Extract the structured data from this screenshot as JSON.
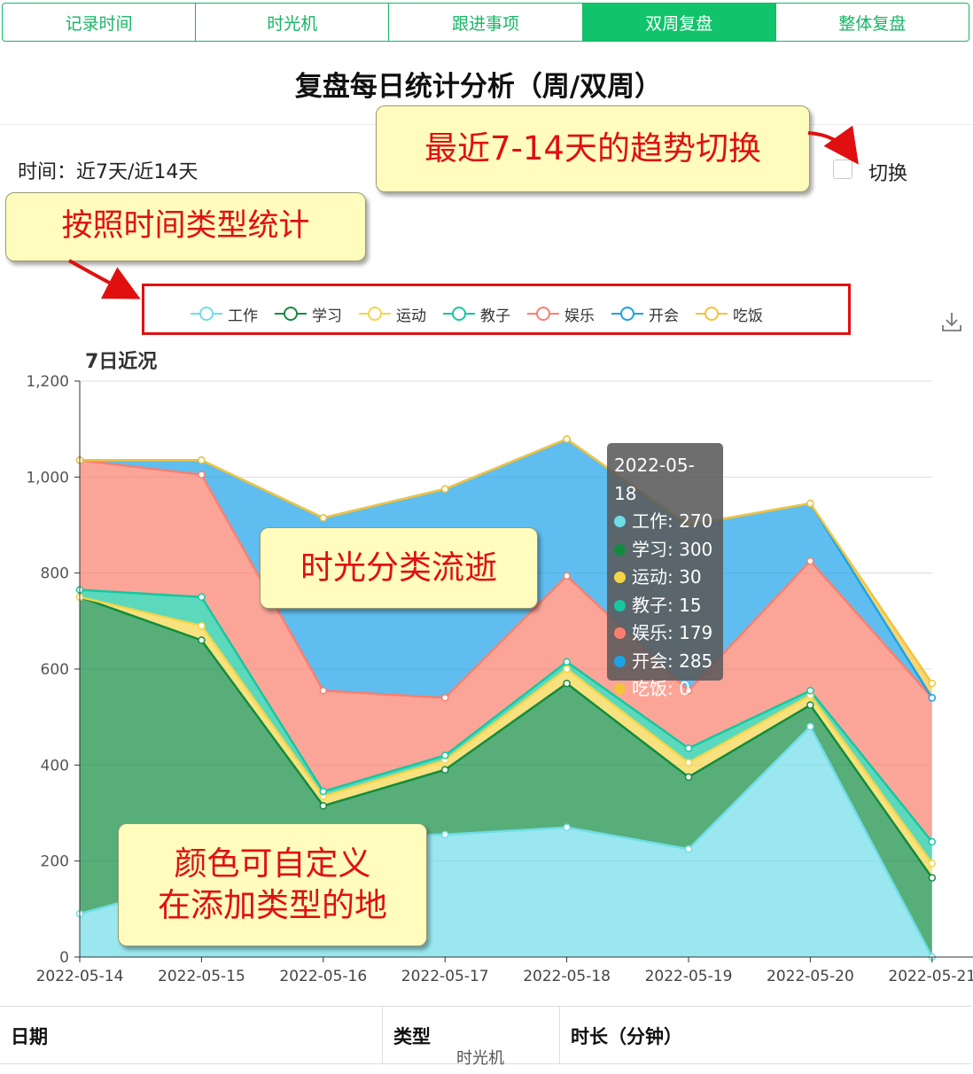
{
  "tabs": [
    {
      "label": "记录时间",
      "active": false
    },
    {
      "label": "时光机",
      "active": false
    },
    {
      "label": "跟进事项",
      "active": false
    },
    {
      "label": "双周复盘",
      "active": true
    },
    {
      "label": "整体复盘",
      "active": false
    }
  ],
  "page_title": "复盘每日统计分析（周/双周）",
  "time_label": "时间：近7天/近14天",
  "switch_label": "切换",
  "callouts": {
    "trend": "最近7-14天的趋势切换",
    "legend": "按照时间类型统计",
    "flow": "时光分类流逝",
    "color_line1": "颜色可自定义",
    "color_line2": "在添加类型的地"
  },
  "chart_data": {
    "type": "area",
    "stacked": true,
    "title": "7日近况",
    "categories": [
      "2022-05-14",
      "2022-05-15",
      "2022-05-16",
      "2022-05-17",
      "2022-05-18",
      "2022-05-19",
      "2022-05-20",
      "2022-05-21"
    ],
    "ylim": [
      0,
      1200
    ],
    "yticks": [
      "0",
      "200",
      "400",
      "600",
      "800",
      "1,000",
      "1,200"
    ],
    "grid": true,
    "legend_position": "top",
    "series": [
      {
        "name": "工作",
        "color": "#6fdde8",
        "values": [
          90,
          160,
          255,
          255,
          270,
          225,
          480,
          0
        ]
      },
      {
        "name": "学习",
        "color": "#118c3e",
        "values": [
          660,
          500,
          60,
          135,
          300,
          150,
          45,
          165
        ]
      },
      {
        "name": "运动",
        "color": "#f5d548",
        "values": [
          0,
          30,
          20,
          20,
          30,
          30,
          20,
          30
        ]
      },
      {
        "name": "教子",
        "color": "#17c7a0",
        "values": [
          15,
          60,
          10,
          10,
          15,
          30,
          10,
          45
        ]
      },
      {
        "name": "娱乐",
        "color": "#fa7f6e",
        "values": [
          270,
          255,
          210,
          120,
          179,
          120,
          270,
          300
        ]
      },
      {
        "name": "开会",
        "color": "#1ba3e8",
        "values": [
          0,
          30,
          360,
          435,
          285,
          345,
          120,
          0
        ]
      },
      {
        "name": "吃饭",
        "color": "#f3c33c",
        "values": [
          0,
          0,
          0,
          0,
          0,
          0,
          0,
          30
        ]
      }
    ],
    "tooltip": {
      "title": "2022-05-18",
      "rows": [
        "工作: 270",
        "学习: 300",
        "运动: 30",
        "教子: 15",
        "娱乐: 179",
        "开会: 285",
        "吃饭: 0"
      ]
    }
  },
  "table": {
    "headers": [
      "日期",
      "类型",
      "时长（分钟）"
    ]
  },
  "footer_nav": "时光机"
}
